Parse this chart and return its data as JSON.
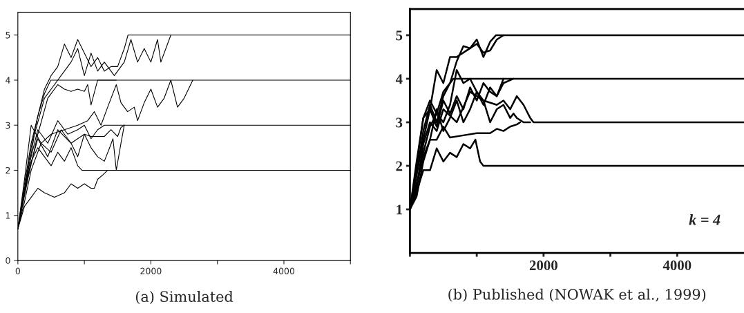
{
  "chart_data": [
    {
      "type": "line",
      "title": "(a) Simulated",
      "xlim": [
        0,
        5000
      ],
      "ylim": [
        0,
        5.5
      ],
      "xticks": [
        0,
        {
          "value": 1000,
          "label": null
        },
        2000,
        {
          "value": 3000,
          "label": null
        },
        4000,
        {
          "value": 5000,
          "label": null
        }
      ],
      "yticks": [
        0,
        1,
        2,
        3,
        4,
        5
      ],
      "grid": false,
      "legend": false,
      "line_style": "solid",
      "marker": "none",
      "series": [
        {
          "color": "#000000",
          "x": [
            0,
            100,
            200,
            300,
            400,
            500,
            600,
            700,
            800,
            900,
            1000,
            1100,
            1200,
            1300,
            1400,
            1500,
            1600,
            1656,
            5000
          ],
          "values": [
            0.7,
            1.6,
            2.5,
            3.2,
            3.8,
            4.1,
            4.3,
            4.8,
            4.5,
            4.9,
            4.6,
            4.3,
            4.5,
            4.2,
            4.3,
            4.3,
            4.7,
            5.0,
            5.0
          ]
        },
        {
          "color": "#000000",
          "x": [
            0,
            100,
            250,
            400,
            550,
            700,
            800,
            900,
            1000,
            1100,
            1200,
            1300,
            1450,
            1600,
            1700,
            1800,
            1900,
            2000,
            2100,
            2150,
            2250,
            2300
          ],
          "values": [
            0.7,
            1.5,
            2.8,
            3.6,
            3.9,
            4.2,
            4.4,
            4.7,
            4.1,
            4.6,
            4.2,
            4.4,
            4.1,
            4.4,
            4.9,
            4.4,
            4.7,
            4.4,
            4.9,
            4.4,
            4.8,
            5.0
          ]
        },
        {
          "color": "#000000",
          "x": [
            0,
            100,
            200,
            350,
            500,
            700,
            900,
            1050,
            1150,
            1250,
            1350,
            1480,
            1550,
            1650,
            1750,
            1800,
            1900,
            2000,
            2100,
            2200,
            2300,
            2400,
            2500,
            2630
          ],
          "values": [
            0.7,
            1.3,
            2.0,
            2.6,
            2.8,
            2.9,
            3.0,
            3.1,
            3.3,
            3.0,
            3.4,
            3.9,
            3.5,
            3.3,
            3.4,
            3.1,
            3.5,
            3.8,
            3.4,
            3.6,
            4.0,
            3.4,
            3.6,
            4.0
          ]
        },
        {
          "color": "#000000",
          "x": [
            0,
            100,
            200,
            300,
            400,
            495,
            5000
          ],
          "values": [
            0.7,
            1.7,
            2.6,
            3.2,
            3.7,
            4.0,
            4.0
          ]
        },
        {
          "color": "#000000",
          "x": [
            0,
            100,
            200,
            300,
            400,
            550,
            700,
            800,
            900,
            1000,
            1100,
            1150,
            1200,
            1280,
            1350,
            5000
          ],
          "values": [
            0.7,
            1.2,
            1.4,
            1.6,
            1.5,
            1.4,
            1.5,
            1.7,
            1.6,
            1.7,
            1.6,
            1.6,
            1.8,
            1.9,
            2.0,
            2.0
          ]
        },
        {
          "color": "#000000",
          "x": [
            0,
            100,
            200,
            300,
            400,
            500,
            600,
            700,
            800,
            900,
            963,
            5000
          ],
          "values": [
            0.7,
            1.5,
            2.2,
            2.5,
            2.3,
            2.1,
            2.4,
            2.2,
            2.5,
            2.1,
            2.0,
            2.0
          ]
        },
        {
          "color": "#000000",
          "x": [
            0,
            150,
            300,
            450,
            600,
            750,
            900,
            1000,
            1100,
            1200,
            1300,
            5000
          ],
          "values": [
            0.7,
            2.0,
            2.9,
            2.6,
            3.1,
            2.8,
            2.9,
            3.0,
            2.7,
            2.9,
            3.0,
            3.0
          ]
        },
        {
          "color": "#000000",
          "x": [
            0,
            100,
            200,
            350,
            500,
            650,
            800,
            900,
            1000,
            1100,
            1200,
            1300,
            1380,
            1430,
            1480,
            1550,
            1600
          ],
          "values": [
            0.7,
            1.8,
            3.0,
            2.6,
            2.4,
            2.9,
            2.6,
            2.3,
            2.8,
            2.5,
            2.3,
            2.2,
            2.5,
            2.7,
            2.0,
            2.6,
            3.0
          ]
        },
        {
          "color": "#000000",
          "x": [
            0,
            150,
            300,
            450,
            600,
            700,
            800,
            900,
            1000,
            1050,
            1100,
            1200,
            1300,
            1480
          ],
          "values": [
            0.7,
            1.8,
            2.8,
            3.6,
            3.9,
            3.8,
            3.75,
            3.8,
            3.75,
            3.9,
            3.45,
            4.0,
            4.0,
            4.0
          ]
        },
        {
          "color": "#000000",
          "x": [
            0,
            150,
            300,
            450,
            600,
            800,
            1000,
            1100,
            1200,
            1300,
            1400,
            1500,
            1550,
            1600
          ],
          "values": [
            0.7,
            1.9,
            2.7,
            2.3,
            2.9,
            2.6,
            2.8,
            2.75,
            2.75,
            2.75,
            2.9,
            2.75,
            2.95,
            3.0
          ]
        }
      ]
    },
    {
      "type": "line",
      "title": "(b) Published (NOWAK et al., 1999)",
      "annotations": [
        "k = 4"
      ],
      "xlim": [
        0,
        5000
      ],
      "ylim": [
        0,
        5.6
      ],
      "xticks": [
        {
          "value": 0,
          "label": null
        },
        {
          "value": 1000,
          "label": null
        },
        2000,
        {
          "value": 3000,
          "label": null
        },
        4000
      ],
      "yticks": [
        1,
        2,
        3,
        4,
        5
      ],
      "grid": false,
      "legend": false,
      "line_style": "solid",
      "marker": "none",
      "series": [
        {
          "color": "#000000",
          "x": [
            0,
            100,
            200,
            300,
            400,
            500,
            600,
            700,
            800,
            900,
            1000,
            1100,
            1200,
            1289,
            5000
          ],
          "values": [
            1.0,
            2.1,
            3.1,
            3.3,
            4.2,
            3.9,
            4.5,
            4.5,
            4.6,
            4.7,
            4.9,
            4.5,
            4.85,
            5.0,
            5.0
          ]
        },
        {
          "color": "#000000",
          "x": [
            0,
            100,
            200,
            300,
            400,
            500,
            600,
            700,
            800,
            900,
            1000,
            1100,
            1200,
            1300,
            1400
          ],
          "values": [
            1.0,
            1.8,
            2.8,
            3.4,
            3.0,
            3.6,
            3.9,
            4.4,
            4.75,
            4.7,
            4.8,
            4.6,
            4.65,
            4.9,
            5.0
          ]
        },
        {
          "color": "#000000",
          "x": [
            0,
            100,
            200,
            300,
            400,
            500,
            650,
            5000
          ],
          "values": [
            1.0,
            2.0,
            3.1,
            3.5,
            3.2,
            3.7,
            4.0,
            4.0
          ]
        },
        {
          "color": "#000000",
          "x": [
            0,
            100,
            200,
            300,
            400,
            500,
            600,
            700,
            800,
            900,
            1000,
            1100,
            1300,
            1400,
            1500,
            1600,
            1700,
            1800,
            1850,
            5000
          ],
          "values": [
            1.0,
            1.5,
            2.3,
            2.9,
            3.2,
            3.0,
            3.4,
            4.2,
            3.9,
            4.0,
            3.7,
            3.5,
            3.4,
            3.5,
            3.3,
            3.6,
            3.4,
            3.1,
            3.0,
            3.0
          ]
        },
        {
          "color": "#000000",
          "x": [
            0,
            100,
            200,
            300,
            400,
            500,
            600,
            700,
            800,
            900,
            980,
            1050,
            1100,
            5000
          ],
          "values": [
            1.0,
            1.4,
            1.9,
            1.9,
            2.4,
            2.1,
            2.3,
            2.2,
            2.5,
            2.4,
            2.6,
            2.1,
            2.0,
            2.0
          ]
        },
        {
          "color": "#000000",
          "x": [
            0,
            100,
            200,
            300,
            400,
            500,
            600,
            800,
            1000,
            1200,
            1300,
            1400,
            1500,
            1600,
            1650
          ],
          "values": [
            1.0,
            1.6,
            2.2,
            2.6,
            2.6,
            2.9,
            2.65,
            2.7,
            2.75,
            2.75,
            2.85,
            2.8,
            2.9,
            2.95,
            3.0
          ]
        },
        {
          "color": "#000000",
          "x": [
            0,
            100,
            200,
            300,
            400,
            500,
            700,
            900,
            1100,
            1200,
            1300,
            1400,
            1500,
            1550,
            1600,
            1700,
            1800
          ],
          "values": [
            1.0,
            1.5,
            2.5,
            3.0,
            2.8,
            3.3,
            3.0,
            3.7,
            3.5,
            3.0,
            3.3,
            3.4,
            3.1,
            3.2,
            3.1,
            3.0,
            3.0
          ]
        },
        {
          "color": "#000000",
          "x": [
            0,
            100,
            200,
            300,
            400,
            500,
            600,
            700,
            800,
            900,
            1000,
            1100,
            1200,
            1300,
            1400,
            1550
          ],
          "values": [
            1.0,
            1.8,
            2.6,
            3.3,
            2.9,
            3.5,
            3.2,
            3.6,
            3.3,
            3.8,
            3.5,
            3.9,
            3.7,
            3.6,
            3.9,
            4.0
          ]
        },
        {
          "color": "#000000",
          "x": [
            0,
            100,
            200,
            300,
            400,
            500,
            600,
            700,
            800,
            900,
            1000,
            1100,
            1200,
            1300,
            1400
          ],
          "values": [
            1.0,
            1.3,
            2.1,
            2.6,
            3.3,
            2.8,
            3.1,
            3.5,
            3.0,
            3.3,
            3.7,
            3.4,
            3.8,
            3.6,
            4.0
          ]
        }
      ]
    }
  ]
}
